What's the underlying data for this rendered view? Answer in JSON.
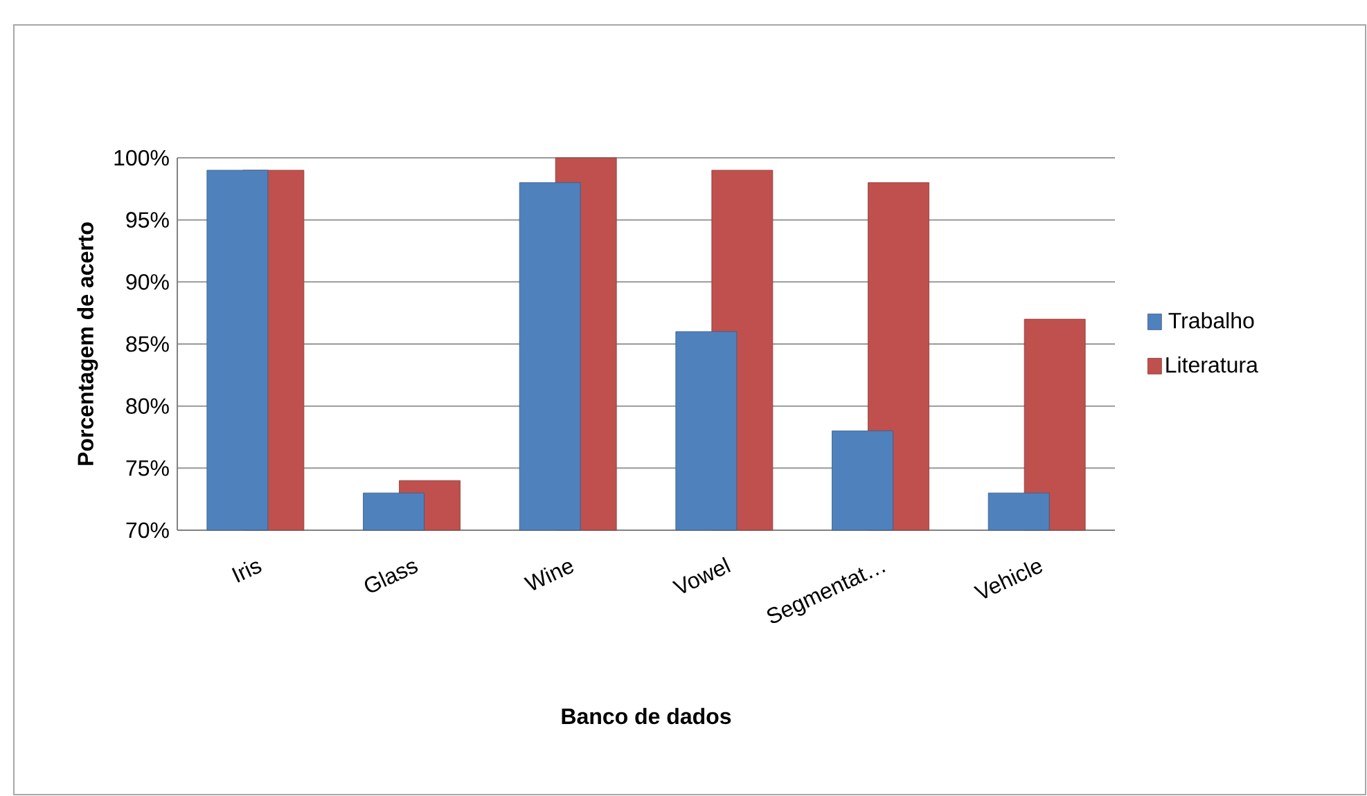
{
  "chart_data": {
    "type": "bar",
    "xlabel": "Banco de dados",
    "ylabel": "Porcentagem de acerto",
    "categories": [
      "Iris",
      "Glass",
      "Wine",
      "Vowel",
      "Segmentat…",
      "Vehicle"
    ],
    "series": [
      {
        "name": "Trabalho",
        "color": "#4f81bd",
        "values": [
          99,
          73,
          98,
          86,
          78,
          73
        ]
      },
      {
        "name": "Literatura",
        "color": "#c0504d",
        "values": [
          99,
          74,
          100,
          99,
          98,
          87
        ]
      }
    ],
    "ylim": [
      70,
      100
    ],
    "yticks": [
      {
        "value": 70,
        "label": "70%"
      },
      {
        "value": 75,
        "label": "75%"
      },
      {
        "value": 80,
        "label": "80%"
      },
      {
        "value": 85,
        "label": "85%"
      },
      {
        "value": 90,
        "label": "90%"
      },
      {
        "value": 95,
        "label": "95%"
      },
      {
        "value": 100,
        "label": "100%"
      }
    ],
    "grid": "y",
    "legend": "right"
  }
}
